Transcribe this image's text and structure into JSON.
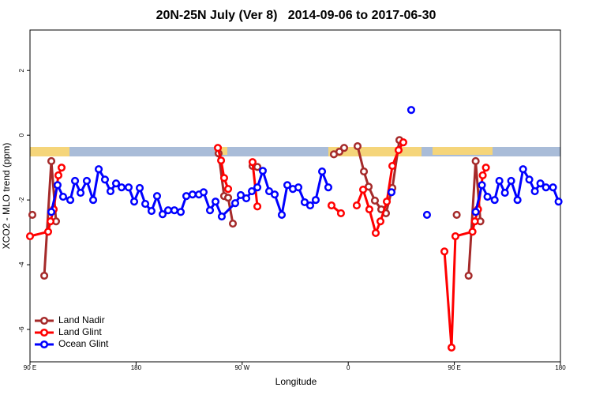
{
  "chart_data": {
    "type": "line",
    "title": "20N-25N July (Ver 8)   2014-09-06 to 2017-06-30",
    "xlabel": "Longitude",
    "ylabel": "XCO2 - MLO trend (ppm)",
    "xlim": [
      90,
      540
    ],
    "ylim": [
      -7,
      3.25
    ],
    "xticks": [
      {
        "value": 90,
        "label": "90 E"
      },
      {
        "value": 180,
        "label": "180"
      },
      {
        "value": 270,
        "label": "90 W"
      },
      {
        "value": 360,
        "label": "0"
      },
      {
        "value": 450,
        "label": "90 E"
      },
      {
        "value": 540,
        "label": "180"
      }
    ],
    "yticks": [
      -6,
      -4,
      -2,
      0,
      2
    ],
    "legend": "bottomleft",
    "series": [
      {
        "name": "Land Nadir",
        "color": "#a52a2a",
        "x": [
          92.0,
          null,
          102.1,
          108.1,
          112.1,
          null,
          250.0,
          254.7,
          258.1,
          262.1,
          null,
          278.8,
          282.9,
          null,
          347.8,
          352.5,
          356.5,
          null,
          367.9,
          373.3,
          377.3,
          382.6,
          388.0,
          392.0,
          397.4,
          403.4,
          null,
          452.0,
          null,
          462.1,
          468.1,
          472.1
        ],
        "values": [
          -2.46,
          null,
          -4.34,
          -0.8,
          -2.66,
          null,
          -0.56,
          -1.88,
          -1.93,
          -2.73,
          null,
          -0.95,
          -0.98,
          null,
          -0.59,
          -0.51,
          -0.39,
          null,
          -0.34,
          -1.12,
          -1.59,
          -2.02,
          -2.29,
          -2.41,
          -1.63,
          -0.15,
          null,
          -2.46,
          null,
          -4.34,
          -0.8,
          -2.66
        ]
      },
      {
        "name": "Land Glint",
        "color": "#ff0000",
        "x": [
          90.0,
          105.4,
          107.4,
          110.1,
          114.1,
          116.8,
          null,
          249.4,
          252.1,
          254.7,
          258.1,
          null,
          278.8,
          282.9,
          null,
          345.8,
          353.8,
          null,
          367.2,
          372.6,
          377.9,
          383.3,
          387.3,
          392.7,
          397.4,
          402.7,
          406.7,
          null,
          441.6,
          447.6,
          450.9,
          465.4,
          467.4,
          470.1,
          474.1,
          476.8
        ],
        "values": [
          -3.12,
          -2.98,
          -2.66,
          -2.29,
          -1.24,
          -1.0,
          null,
          -0.39,
          -0.78,
          -1.32,
          -1.66,
          null,
          -0.83,
          -2.2,
          null,
          -2.17,
          -2.41,
          null,
          -2.17,
          -1.68,
          -2.29,
          -3.02,
          -2.66,
          -2.05,
          -0.95,
          -0.46,
          -0.22,
          null,
          -3.59,
          -6.56,
          -3.12,
          -2.98,
          -2.66,
          -2.29,
          -1.24,
          -1.0
        ]
      },
      {
        "name": "Ocean Glint",
        "color": "#0000ff",
        "x": [
          108.1,
          113.4,
          118.1,
          124.2,
          128.2,
          132.9,
          138.2,
          143.6,
          148.3,
          153.6,
          158.3,
          163.0,
          167.7,
          173.7,
          178.4,
          183.1,
          187.8,
          193.1,
          197.8,
          202.5,
          207.2,
          212.5,
          217.9,
          222.6,
          227.9,
          233.3,
          237.3,
          242.7,
          247.4,
          252.7,
          264.1,
          268.8,
          273.5,
          278.2,
          282.9,
          287.5,
          292.9,
          297.6,
          303.6,
          308.3,
          313.0,
          317.7,
          323.0,
          327.7,
          332.4,
          337.8,
          343.1,
          null,
          396.7,
          null,
          413.4,
          null,
          426.8,
          null,
          468.1,
          473.4,
          478.1,
          484.2,
          488.2,
          492.9,
          498.2,
          503.6,
          508.3,
          513.6,
          518.3,
          523.0,
          527.7,
          533.7,
          538.4
        ],
        "values": [
          -2.37,
          -1.54,
          -1.9,
          -2.0,
          -1.41,
          -1.78,
          -1.41,
          -2.0,
          -1.05,
          -1.37,
          -1.73,
          -1.49,
          -1.61,
          -1.61,
          -2.05,
          -1.63,
          -2.12,
          -2.34,
          -1.88,
          -2.44,
          -2.32,
          -2.32,
          -2.37,
          -1.88,
          -1.83,
          -1.83,
          -1.76,
          -2.32,
          -2.05,
          -2.51,
          -2.1,
          -1.85,
          -1.95,
          -1.73,
          -1.61,
          -1.1,
          -1.73,
          -1.83,
          -2.46,
          -1.54,
          -1.66,
          -1.61,
          -2.07,
          -2.17,
          -2.0,
          -1.12,
          -1.61,
          null,
          -1.76,
          null,
          0.78,
          null,
          -2.46,
          null,
          -2.37,
          -1.54,
          -1.9,
          -2.0,
          -1.41,
          -1.78,
          -1.41,
          -2.0,
          -1.05,
          -1.37,
          -1.73,
          -1.49,
          -1.61,
          -1.61,
          -2.05
        ]
      }
    ]
  }
}
